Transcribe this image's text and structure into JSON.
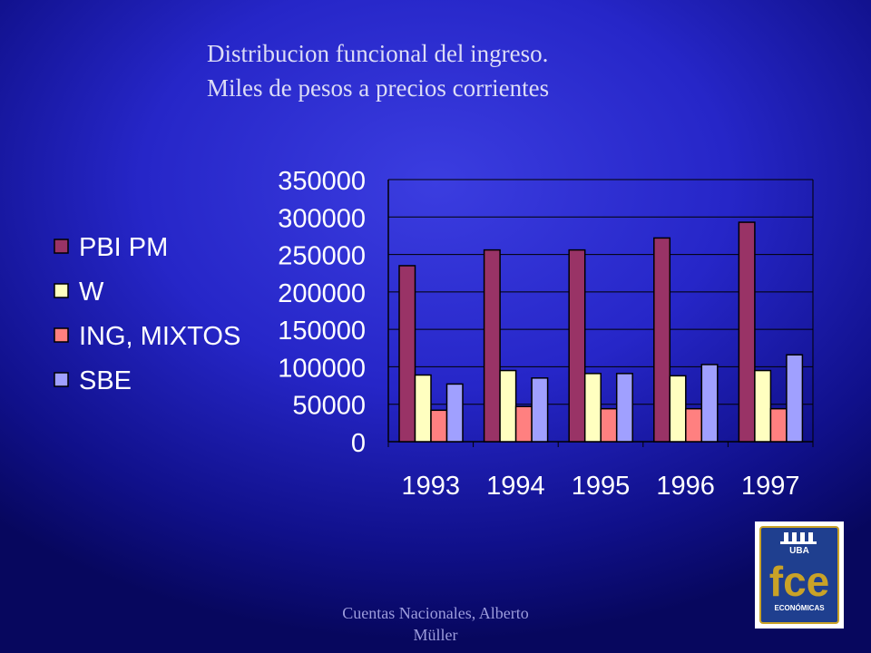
{
  "slide": {
    "title_line1": "Distribucion funcional del ingreso.",
    "title_line2": "Miles de pesos a precios corrientes",
    "footer_line1": "Cuentas Nacionales, Alberto",
    "footer_line2": "Müller",
    "logo_text_top": "UBA",
    "logo_text_main": "fce",
    "logo_text_bottom": "ECONÓMICAS"
  },
  "chart_data": {
    "type": "bar",
    "categories": [
      "1993",
      "1994",
      "1995",
      "1996",
      "1997"
    ],
    "series": [
      {
        "name": "PBI PM",
        "color": "#993366",
        "values": [
          235000,
          256000,
          256000,
          272000,
          293000
        ]
      },
      {
        "name": "W",
        "color": "#ffffc0",
        "values": [
          89000,
          95000,
          91000,
          88000,
          95000
        ]
      },
      {
        "name": "ING, MIXTOS",
        "color": "#ff8080",
        "values": [
          42000,
          47000,
          44000,
          44000,
          44000
        ]
      },
      {
        "name": "SBE",
        "color": "#a0a0ff",
        "values": [
          77000,
          85000,
          91000,
          103000,
          116000
        ]
      }
    ],
    "ylim": [
      0,
      350000
    ],
    "yticks": [
      "0",
      "50000",
      "100000",
      "150000",
      "200000",
      "250000",
      "300000",
      "350000"
    ],
    "grid": true,
    "legend_position": "left"
  }
}
